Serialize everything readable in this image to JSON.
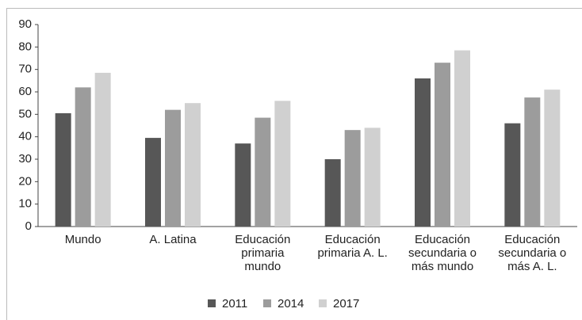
{
  "chart_data": {
    "type": "bar",
    "categories": [
      "Mundo",
      "A. Latina",
      "Educación primaria mundo",
      "Educación primaria A. L.",
      "Educación secundaria o más mundo",
      "Educación secundaria o más A. L."
    ],
    "series": [
      {
        "name": "2011",
        "color": "#575757",
        "values": [
          50.5,
          39.5,
          37,
          30,
          66,
          46
        ]
      },
      {
        "name": "2014",
        "color": "#9c9c9c",
        "values": [
          62,
          52,
          48.5,
          43,
          73,
          57.5
        ]
      },
      {
        "name": "2017",
        "color": "#d0d0d0",
        "values": [
          68.5,
          55,
          56,
          44,
          78.5,
          61
        ]
      }
    ],
    "ylim": [
      0,
      90
    ],
    "yticks": [
      0,
      10,
      20,
      30,
      40,
      50,
      60,
      70,
      80,
      90
    ],
    "legend": "bottom"
  }
}
